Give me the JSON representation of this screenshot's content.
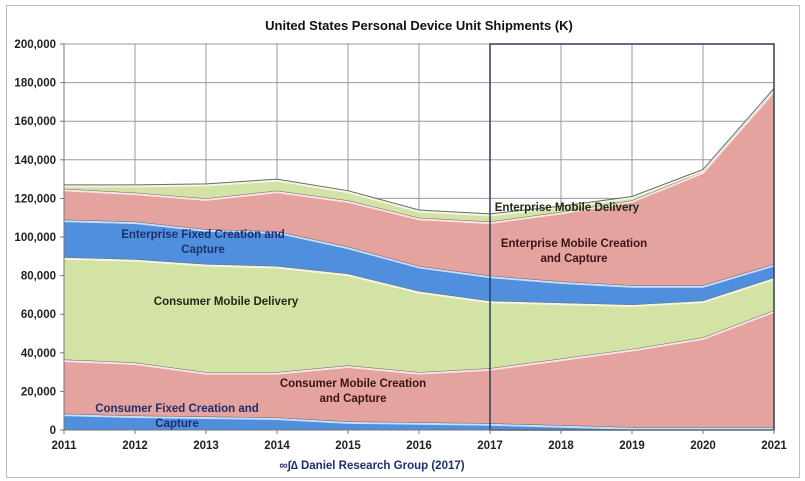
{
  "chart_data": {
    "type": "area",
    "stacked": true,
    "title": "United States Personal Device Unit Shipments (K)",
    "xlabel": "",
    "ylabel": "",
    "x": [
      2011,
      2012,
      2013,
      2014,
      2015,
      2016,
      2017,
      2018,
      2019,
      2020,
      2021
    ],
    "xtick_labels": [
      "2011",
      "2012",
      "2013",
      "2014",
      "2015",
      "2016",
      "2017",
      "2018",
      "2019",
      "2020",
      "2021"
    ],
    "ylim": [
      0,
      200000
    ],
    "ytick_labels": [
      "0",
      "20,000",
      "40,000",
      "60,000",
      "80,000",
      "100,000",
      "120,000",
      "140,000",
      "160,000",
      "180,000",
      "200,000"
    ],
    "grid": true,
    "highlight_range": [
      2017,
      2021
    ],
    "highlight_color": "#2b3f5c",
    "series": [
      {
        "name": "Consumer Fixed Creation and Capture",
        "color": "#4f8fde",
        "label_color": "#1f2f6b",
        "values": [
          8500,
          7500,
          7000,
          6500,
          4500,
          4000,
          3500,
          2500,
          1500,
          1500,
          1500
        ]
      },
      {
        "name": "Consumer Mobile Creation and Capture",
        "color": "#e5a3a0",
        "label_color": "#3a1414",
        "values": [
          28000,
          27500,
          23000,
          23500,
          29000,
          26000,
          28500,
          34500,
          40500,
          46500,
          60500
        ]
      },
      {
        "name": "Consumer Mobile Delivery",
        "color": "#d3e3a6",
        "label_color": "#1e2a12",
        "values": [
          53000,
          53500,
          56000,
          55000,
          47500,
          42000,
          35000,
          29000,
          23000,
          19000,
          17000
        ]
      },
      {
        "name": "Enterprise Fixed Creation and Capture",
        "color": "#4f8fde",
        "label_color": "#1f2f6b",
        "values": [
          19500,
          19500,
          18000,
          18000,
          14000,
          13000,
          13000,
          11000,
          10000,
          8000,
          7000
        ]
      },
      {
        "name": "Enterprise Mobile Creation and Capture",
        "color": "#e5a3a0",
        "label_color": "#3a1414",
        "values": [
          16000,
          15000,
          16000,
          21000,
          24000,
          25000,
          28000,
          36000,
          44000,
          59000,
          90000
        ]
      },
      {
        "name": "Enterprise Mobile Delivery",
        "color": "#d3e3a6",
        "label_color": "#1e2a12",
        "values": [
          2000,
          4000,
          7500,
          6000,
          5000,
          4000,
          4000,
          3000,
          2000,
          1000,
          1000
        ]
      }
    ],
    "annotations": {
      "cf": [
        "Consumer Fixed Creation and",
        "Capture"
      ],
      "cmc": [
        "Consumer Mobile Creation",
        "and Capture"
      ],
      "cmd": [
        "Consumer Mobile Delivery"
      ],
      "ef": [
        "Enterprise Fixed Creation and",
        "Capture"
      ],
      "emc": [
        "Enterprise Mobile Creation",
        "and Capture"
      ],
      "emd": [
        "Enterprise Mobile Delivery"
      ]
    },
    "source": "∞∫∆ Daniel Research Group (2017)"
  }
}
